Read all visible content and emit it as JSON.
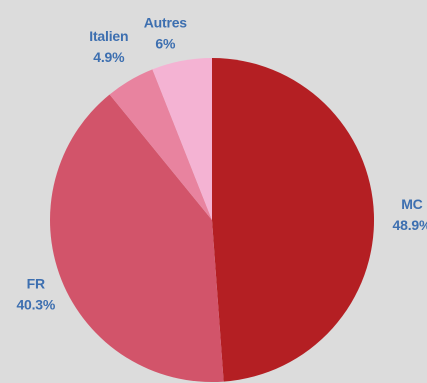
{
  "colors": {
    "background": "#dcdcdc",
    "label_text": "#3d6fb0",
    "mc": "#b41f23",
    "fr": "#d2546a",
    "italien": "#e8839f",
    "autres": "#f4b3d3"
  },
  "chart_data": {
    "type": "pie",
    "start_angle_deg": 0,
    "direction": "clockwise",
    "slices": [
      {
        "name": "MC",
        "value": 48.9,
        "label": "48.9%",
        "color": "#b41f23"
      },
      {
        "name": "FR",
        "value": 40.3,
        "label": "40.3%",
        "color": "#d2546a"
      },
      {
        "name": "Italien",
        "value": 4.9,
        "label": "4.9%",
        "color": "#e8839f"
      },
      {
        "name": "Autres",
        "value": 6,
        "label": "6%",
        "color": "#f4b3d3"
      }
    ]
  }
}
